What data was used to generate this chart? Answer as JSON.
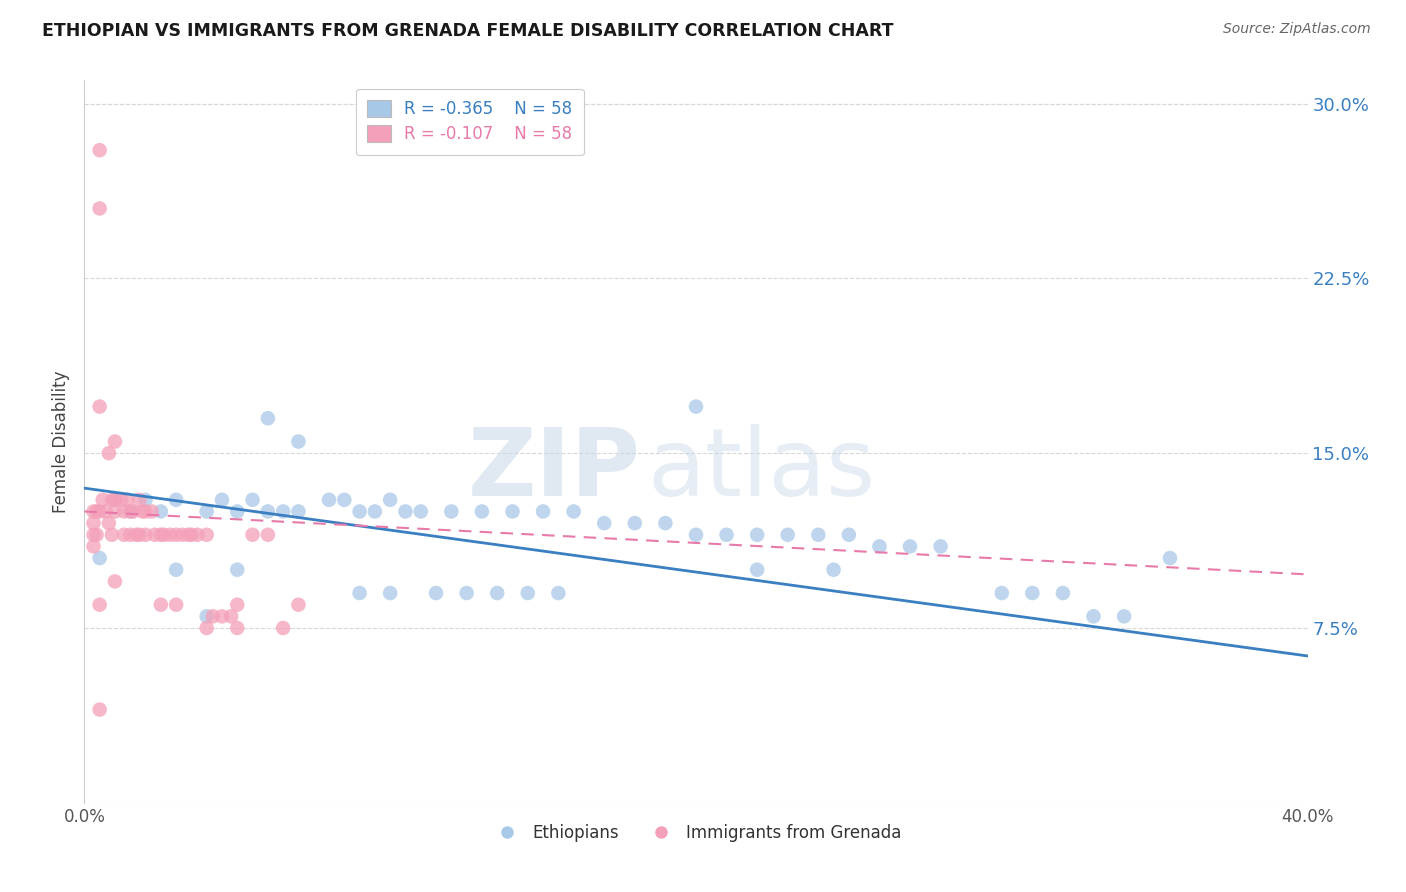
{
  "title": "ETHIOPIAN VS IMMIGRANTS FROM GRENADA FEMALE DISABILITY CORRELATION CHART",
  "source": "Source: ZipAtlas.com",
  "ylabel": "Female Disability",
  "xlim": [
    0.0,
    0.4
  ],
  "ylim": [
    0.0,
    0.31
  ],
  "yticks": [
    0.075,
    0.15,
    0.225,
    0.3
  ],
  "ytick_labels": [
    "7.5%",
    "15.0%",
    "22.5%",
    "30.0%"
  ],
  "xticks": [
    0.0,
    0.05,
    0.1,
    0.15,
    0.2,
    0.25,
    0.3,
    0.35,
    0.4
  ],
  "xtick_labels": [
    "0.0%",
    "",
    "",
    "",
    "",
    "",
    "",
    "",
    "40.0%"
  ],
  "blue_R": -0.365,
  "blue_N": 58,
  "pink_R": -0.107,
  "pink_N": 58,
  "blue_color": "#a8c8e8",
  "pink_color": "#f4a0b8",
  "blue_line_color": "#3a7fc1",
  "pink_line_color": "#e87aaa",
  "blue_text_color": "#3a7fc1",
  "pink_text_color": "#e87aaa",
  "watermark_zip": "ZIP",
  "watermark_atlas": "atlas",
  "legend_label_blue": "Ethiopians",
  "legend_label_pink": "Immigrants from Grenada",
  "blue_scatter_x": [
    0.005,
    0.01,
    0.015,
    0.02,
    0.025,
    0.03,
    0.03,
    0.04,
    0.04,
    0.045,
    0.05,
    0.05,
    0.055,
    0.06,
    0.06,
    0.065,
    0.07,
    0.07,
    0.08,
    0.085,
    0.09,
    0.09,
    0.095,
    0.1,
    0.1,
    0.105,
    0.11,
    0.115,
    0.12,
    0.125,
    0.13,
    0.135,
    0.14,
    0.145,
    0.15,
    0.155,
    0.16,
    0.17,
    0.18,
    0.19,
    0.2,
    0.21,
    0.22,
    0.23,
    0.24,
    0.245,
    0.25,
    0.26,
    0.27,
    0.28,
    0.3,
    0.31,
    0.32,
    0.33,
    0.34,
    0.355,
    0.2,
    0.22
  ],
  "blue_scatter_y": [
    0.105,
    0.13,
    0.125,
    0.13,
    0.125,
    0.13,
    0.1,
    0.125,
    0.08,
    0.13,
    0.125,
    0.1,
    0.13,
    0.125,
    0.165,
    0.125,
    0.125,
    0.155,
    0.13,
    0.13,
    0.125,
    0.09,
    0.125,
    0.13,
    0.09,
    0.125,
    0.125,
    0.09,
    0.125,
    0.09,
    0.125,
    0.09,
    0.125,
    0.09,
    0.125,
    0.09,
    0.125,
    0.12,
    0.12,
    0.12,
    0.115,
    0.115,
    0.115,
    0.115,
    0.115,
    0.1,
    0.115,
    0.11,
    0.11,
    0.11,
    0.09,
    0.09,
    0.09,
    0.08,
    0.08,
    0.105,
    0.17,
    0.1
  ],
  "pink_scatter_x": [
    0.003,
    0.003,
    0.003,
    0.003,
    0.004,
    0.004,
    0.005,
    0.005,
    0.005,
    0.005,
    0.005,
    0.006,
    0.007,
    0.008,
    0.008,
    0.009,
    0.009,
    0.01,
    0.01,
    0.01,
    0.01,
    0.012,
    0.013,
    0.013,
    0.014,
    0.015,
    0.015,
    0.016,
    0.017,
    0.018,
    0.018,
    0.019,
    0.02,
    0.02,
    0.022,
    0.023,
    0.025,
    0.025,
    0.026,
    0.028,
    0.03,
    0.03,
    0.032,
    0.034,
    0.035,
    0.037,
    0.04,
    0.04,
    0.042,
    0.045,
    0.048,
    0.05,
    0.05,
    0.055,
    0.06,
    0.065,
    0.07,
    0.005
  ],
  "pink_scatter_y": [
    0.125,
    0.12,
    0.115,
    0.11,
    0.125,
    0.115,
    0.28,
    0.255,
    0.17,
    0.125,
    0.085,
    0.13,
    0.125,
    0.15,
    0.12,
    0.13,
    0.115,
    0.155,
    0.13,
    0.125,
    0.095,
    0.13,
    0.125,
    0.115,
    0.13,
    0.125,
    0.115,
    0.125,
    0.115,
    0.13,
    0.115,
    0.125,
    0.125,
    0.115,
    0.125,
    0.115,
    0.115,
    0.085,
    0.115,
    0.115,
    0.115,
    0.085,
    0.115,
    0.115,
    0.115,
    0.115,
    0.115,
    0.075,
    0.08,
    0.08,
    0.08,
    0.085,
    0.075,
    0.115,
    0.115,
    0.075,
    0.085,
    0.04
  ],
  "blue_trend_x": [
    0.0,
    0.4
  ],
  "blue_trend_y": [
    0.135,
    0.063
  ],
  "pink_trend_x": [
    0.0,
    0.4
  ],
  "pink_trend_y": [
    0.125,
    0.098
  ]
}
